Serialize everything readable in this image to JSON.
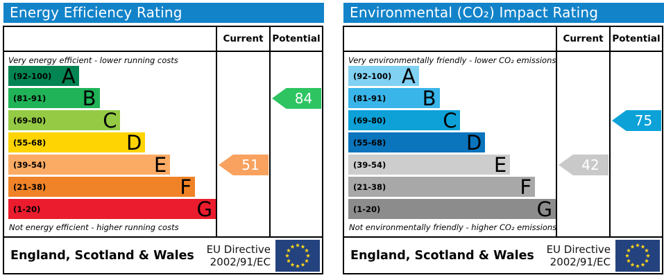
{
  "charts": [
    {
      "title": "Energy Efficiency Rating",
      "header_bg": "#1283c9",
      "columns": {
        "current": "Current",
        "potential": "Potential"
      },
      "top_note": "Very energy efficient - lower running costs",
      "bottom_note": "Not energy efficient - higher running costs",
      "bands": [
        {
          "letter": "A",
          "range": "(92-100)",
          "color": "#028552",
          "width": "34%"
        },
        {
          "letter": "B",
          "range": "(81-91)",
          "color": "#20b358",
          "width": "44%"
        },
        {
          "letter": "C",
          "range": "(69-80)",
          "color": "#94ca44",
          "width": "54%"
        },
        {
          "letter": "D",
          "range": "(55-68)",
          "color": "#fed402",
          "width": "66%"
        },
        {
          "letter": "E",
          "range": "(39-54)",
          "color": "#fcab65",
          "width": "78%"
        },
        {
          "letter": "F",
          "range": "(21-38)",
          "color": "#f08327",
          "width": "90%"
        },
        {
          "letter": "G",
          "range": "(1-20)",
          "color": "#ea1c2d",
          "width": "100%"
        }
      ],
      "current": {
        "value": 51,
        "band_row": 4,
        "color": "#f9a15f"
      },
      "potential": {
        "value": 84,
        "band_row": 1,
        "color": "#2ec462"
      },
      "footer": {
        "region": "England, Scotland & Wales",
        "directive_line1": "EU Directive",
        "directive_line2": "2002/91/EC"
      },
      "eu_flag": {
        "background": "#24427e",
        "star_color": "#ffd617"
      }
    },
    {
      "title": "Environmental (CO₂) Impact Rating",
      "header_bg": "#1283c9",
      "columns": {
        "current": "Current",
        "potential": "Potential"
      },
      "top_note": "Very environmentally friendly - lower CO₂ emissions",
      "bottom_note": "Not environmentally friendly - higher CO₂ emissions",
      "bands": [
        {
          "letter": "A",
          "range": "(92-100)",
          "color": "#81d1f3",
          "width": "34%"
        },
        {
          "letter": "B",
          "range": "(81-91)",
          "color": "#39b5e9",
          "width": "44%"
        },
        {
          "letter": "C",
          "range": "(69-80)",
          "color": "#0da1d8",
          "width": "54%"
        },
        {
          "letter": "D",
          "range": "(55-68)",
          "color": "#0a74bd",
          "width": "66%"
        },
        {
          "letter": "E",
          "range": "(39-54)",
          "color": "#cdcdcd",
          "width": "78%"
        },
        {
          "letter": "F",
          "range": "(21-38)",
          "color": "#a8a8a8",
          "width": "90%"
        },
        {
          "letter": "G",
          "range": "(1-20)",
          "color": "#8c8c8c",
          "width": "100%"
        }
      ],
      "current": {
        "value": 42,
        "band_row": 4,
        "color": "#c9c9c9"
      },
      "potential": {
        "value": 75,
        "band_row": 2,
        "color": "#0ca2d8"
      },
      "footer": {
        "region": "England, Scotland & Wales",
        "directive_line1": "EU Directive",
        "directive_line2": "2002/91/EC"
      },
      "eu_flag": {
        "background": "#24427e",
        "star_color": "#ffd617"
      }
    }
  ],
  "chart_data": [
    {
      "type": "bar",
      "title": "Energy Efficiency Rating",
      "categories": [
        "A (92-100)",
        "B (81-91)",
        "C (69-80)",
        "D (55-68)",
        "E (39-54)",
        "F (21-38)",
        "G (1-20)"
      ],
      "values": [
        34,
        44,
        54,
        66,
        78,
        90,
        100
      ],
      "values_note": "relative band bar lengths as % of band area width",
      "current": 51,
      "current_band": "E",
      "potential": 84,
      "potential_band": "B",
      "top_label": "Very energy efficient - lower running costs",
      "bottom_label": "Not energy efficient - higher running costs",
      "column_headers": [
        "Current",
        "Potential"
      ],
      "footer": "England, Scotland & Wales — EU Directive 2002/91/EC",
      "grid": false,
      "legend_position": "none"
    },
    {
      "type": "bar",
      "title": "Environmental (CO₂) Impact Rating",
      "categories": [
        "A (92-100)",
        "B (81-91)",
        "C (69-80)",
        "D (55-68)",
        "E (39-54)",
        "F (21-38)",
        "G (1-20)"
      ],
      "values": [
        34,
        44,
        54,
        66,
        78,
        90,
        100
      ],
      "values_note": "relative band bar lengths as % of band area width",
      "current": 42,
      "current_band": "E",
      "potential": 75,
      "potential_band": "C",
      "top_label": "Very environmentally friendly - lower CO₂ emissions",
      "bottom_label": "Not environmentally friendly - higher CO₂ emissions",
      "column_headers": [
        "Current",
        "Potential"
      ],
      "footer": "England, Scotland & Wales — EU Directive 2002/91/EC",
      "grid": false,
      "legend_position": "none"
    }
  ]
}
